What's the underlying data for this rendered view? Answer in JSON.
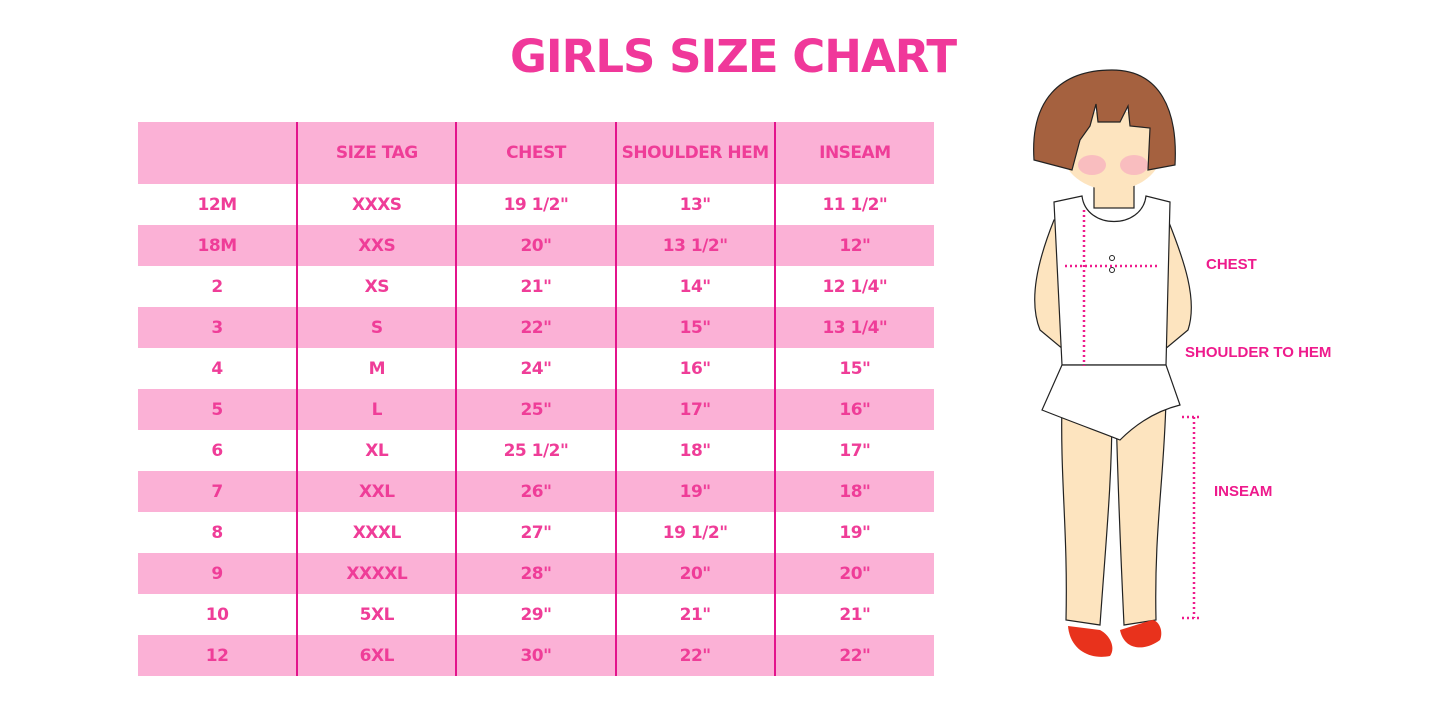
{
  "title": "GIRLS SIZE CHART",
  "table": {
    "headers": [
      "",
      "SIZE TAG",
      "CHEST",
      "SHOULDER HEM",
      "INSEAM"
    ],
    "rows": [
      [
        "12M",
        "XXXS",
        "19 1/2\"",
        "13\"",
        "11 1/2\""
      ],
      [
        "18M",
        "XXS",
        "20\"",
        "13 1/2\"",
        "12\""
      ],
      [
        "2",
        "XS",
        "21\"",
        "14\"",
        "12 1/4\""
      ],
      [
        "3",
        "S",
        "22\"",
        "15\"",
        "13 1/4\""
      ],
      [
        "4",
        "M",
        "24\"",
        "16\"",
        "15\""
      ],
      [
        "5",
        "L",
        "25\"",
        "17\"",
        "16\""
      ],
      [
        "6",
        "XL",
        "25 1/2\"",
        "18\"",
        "17\""
      ],
      [
        "7",
        "XXL",
        "26\"",
        "19\"",
        "18\""
      ],
      [
        "8",
        "XXXL",
        "27\"",
        "19 1/2\"",
        "19\""
      ],
      [
        "9",
        "XXXXL",
        "28\"",
        "20\"",
        "20\""
      ],
      [
        "10",
        "5XL",
        "29\"",
        "21\"",
        "21\""
      ],
      [
        "12",
        "6XL",
        "30\"",
        "22\"",
        "22\""
      ]
    ]
  },
  "illustration": {
    "labels": {
      "chest": "CHEST",
      "shoulder": "SHOULDER TO HEM",
      "inseam": "INSEAM"
    }
  },
  "colors": {
    "accent": "#f0389a",
    "row_pink": "#fbb1d6",
    "divider": "#e3148c"
  }
}
